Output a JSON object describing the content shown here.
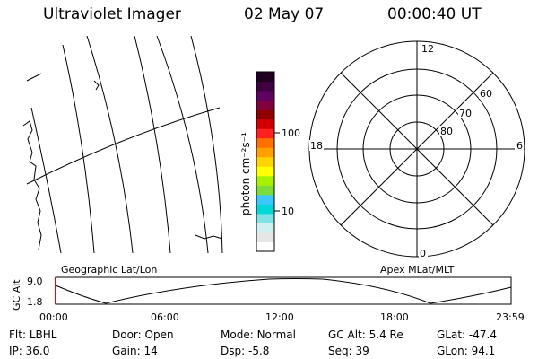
{
  "header": {
    "title": "Ultraviolet Imager",
    "date": "02 May 07",
    "time": "00:00:40 UT"
  },
  "colorbar": {
    "unit_label": "photon cm⁻²s⁻¹",
    "ticks": [
      "100",
      "10"
    ],
    "scale": "log",
    "colors": [
      "#ffffff",
      "#e6e6e6",
      "#cfeff0",
      "#7fe3e6",
      "#00d8d8",
      "#3cc8ff",
      "#7cdc3c",
      "#a8f000",
      "#ffff00",
      "#ffd400",
      "#ffa000",
      "#ff7000",
      "#ff2020",
      "#d00000",
      "#900000",
      "#800040",
      "#600060",
      "#400040",
      "#200020"
    ]
  },
  "polar": {
    "mlt_labels": {
      "top": "12",
      "left": "18",
      "right": "6",
      "bottom": "0"
    },
    "lat_labels": [
      "60",
      "70",
      "80"
    ]
  },
  "map": {
    "caption_left": "Geographic Lat/Lon",
    "caption_right": "Apex MLat/MLT"
  },
  "altitude_plot": {
    "axis_title": "GC Alt",
    "y_ticks": [
      "9.0",
      "1.8"
    ],
    "x_ticks": [
      "00:00",
      "06:00",
      "12:00",
      "18:00",
      "23:59"
    ]
  },
  "status": {
    "filter": {
      "label": "Flt:",
      "value": "LBHL"
    },
    "door": {
      "label": "Door:",
      "value": "Open"
    },
    "mode": {
      "label": "Mode:",
      "value": "Normal"
    },
    "gc_alt": {
      "label": "GC Alt:",
      "value": "5.4 Re"
    },
    "glat": {
      "label": "GLat:",
      "value": "-47.4"
    },
    "ip": {
      "label": "IP:",
      "value": "36.0"
    },
    "gain": {
      "label": "Gain:",
      "value": "14"
    },
    "dsp": {
      "label": "Dsp:",
      "value": "-5.8"
    },
    "seq": {
      "label": "Seq:",
      "value": "39"
    },
    "glon": {
      "label": "GLon:",
      "value": "94.1"
    }
  }
}
